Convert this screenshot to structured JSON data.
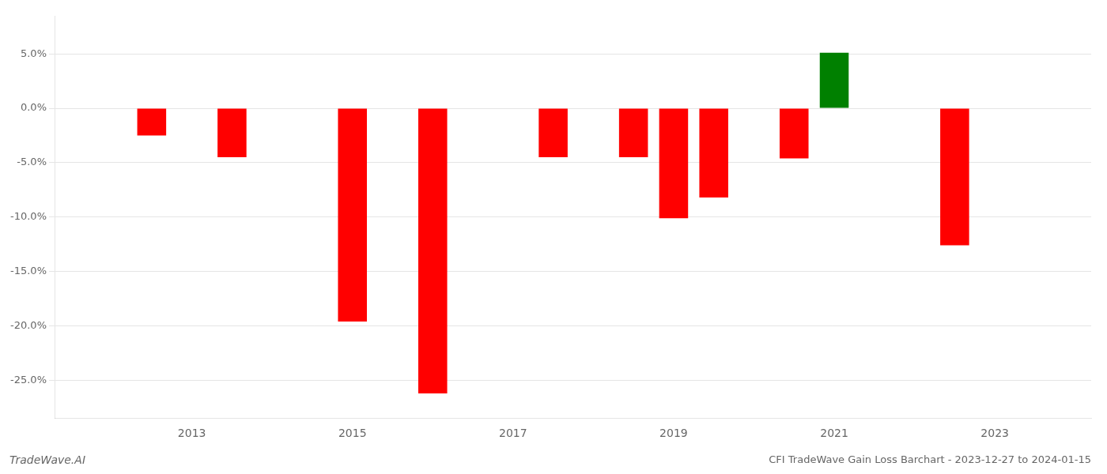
{
  "chart_data": {
    "type": "bar",
    "title": "CFI TradeWave Gain Loss Barchart - 2023-12-27 to 2024-01-15",
    "annotations": [
      "TradeWave.AI"
    ],
    "x": [
      2012.5,
      2013.5,
      2015.0,
      2016.0,
      2017.5,
      2018.5,
      2019.0,
      2019.5,
      2020.5,
      2021.0,
      2022.5
    ],
    "values": [
      -0.025,
      -0.045,
      -0.196,
      -0.262,
      -0.045,
      -0.045,
      -0.101,
      -0.082,
      -0.046,
      0.051,
      -0.126
    ],
    "colors": [
      "#ff0000",
      "#ff0000",
      "#ff0000",
      "#ff0000",
      "#ff0000",
      "#ff0000",
      "#ff0000",
      "#ff0000",
      "#ff0000",
      "#008000",
      "#ff0000"
    ],
    "xlim": [
      2011.3,
      2024.2
    ],
    "xticks": [
      2013,
      2015,
      2017,
      2019,
      2021,
      2023
    ],
    "ylim": [
      -0.285,
      0.085
    ],
    "yticks": [
      {
        "value": -0.25,
        "label": "-25.0%"
      },
      {
        "value": -0.2,
        "label": "-20.0%"
      },
      {
        "value": -0.15,
        "label": "-15.0%"
      },
      {
        "value": -0.1,
        "label": "-10.0%"
      },
      {
        "value": -0.05,
        "label": "-5.0%"
      },
      {
        "value": 0.0,
        "label": "0.0%"
      },
      {
        "value": 0.05,
        "label": "5.0%"
      }
    ],
    "grid": "y"
  }
}
